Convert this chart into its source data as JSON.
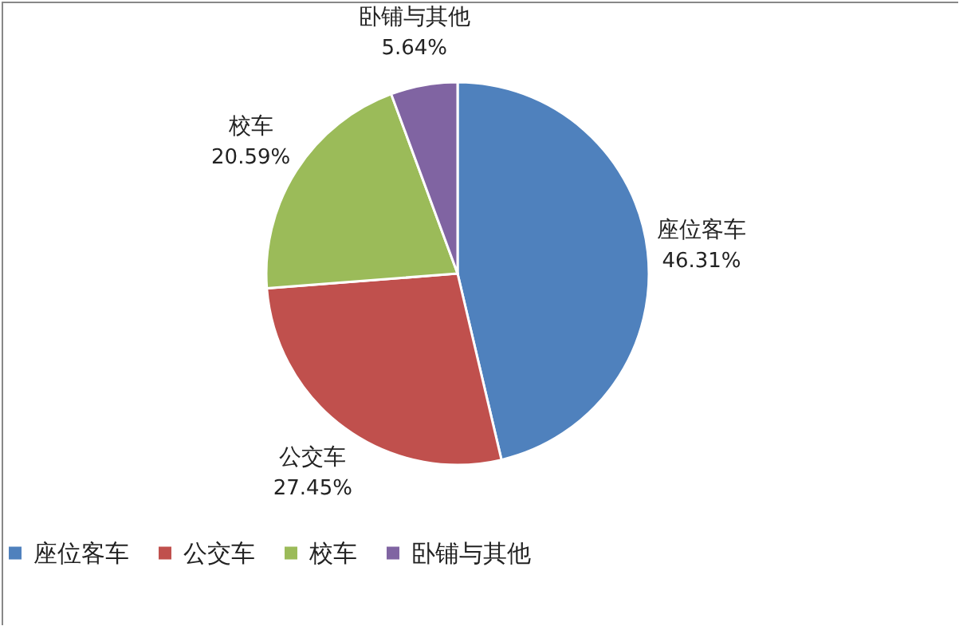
{
  "chart_data": {
    "type": "pie",
    "categories": [
      "座位客车",
      "公交车",
      "校车",
      "卧铺与其他"
    ],
    "values": [
      46.31,
      27.45,
      20.59,
      5.64
    ],
    "colors": [
      "#4f81bd",
      "#c0504d",
      "#9bbb59",
      "#8064a2"
    ],
    "value_labels": [
      "46.31%",
      "27.45%",
      "20.59%",
      "5.64%"
    ],
    "legend": "bottom"
  }
}
